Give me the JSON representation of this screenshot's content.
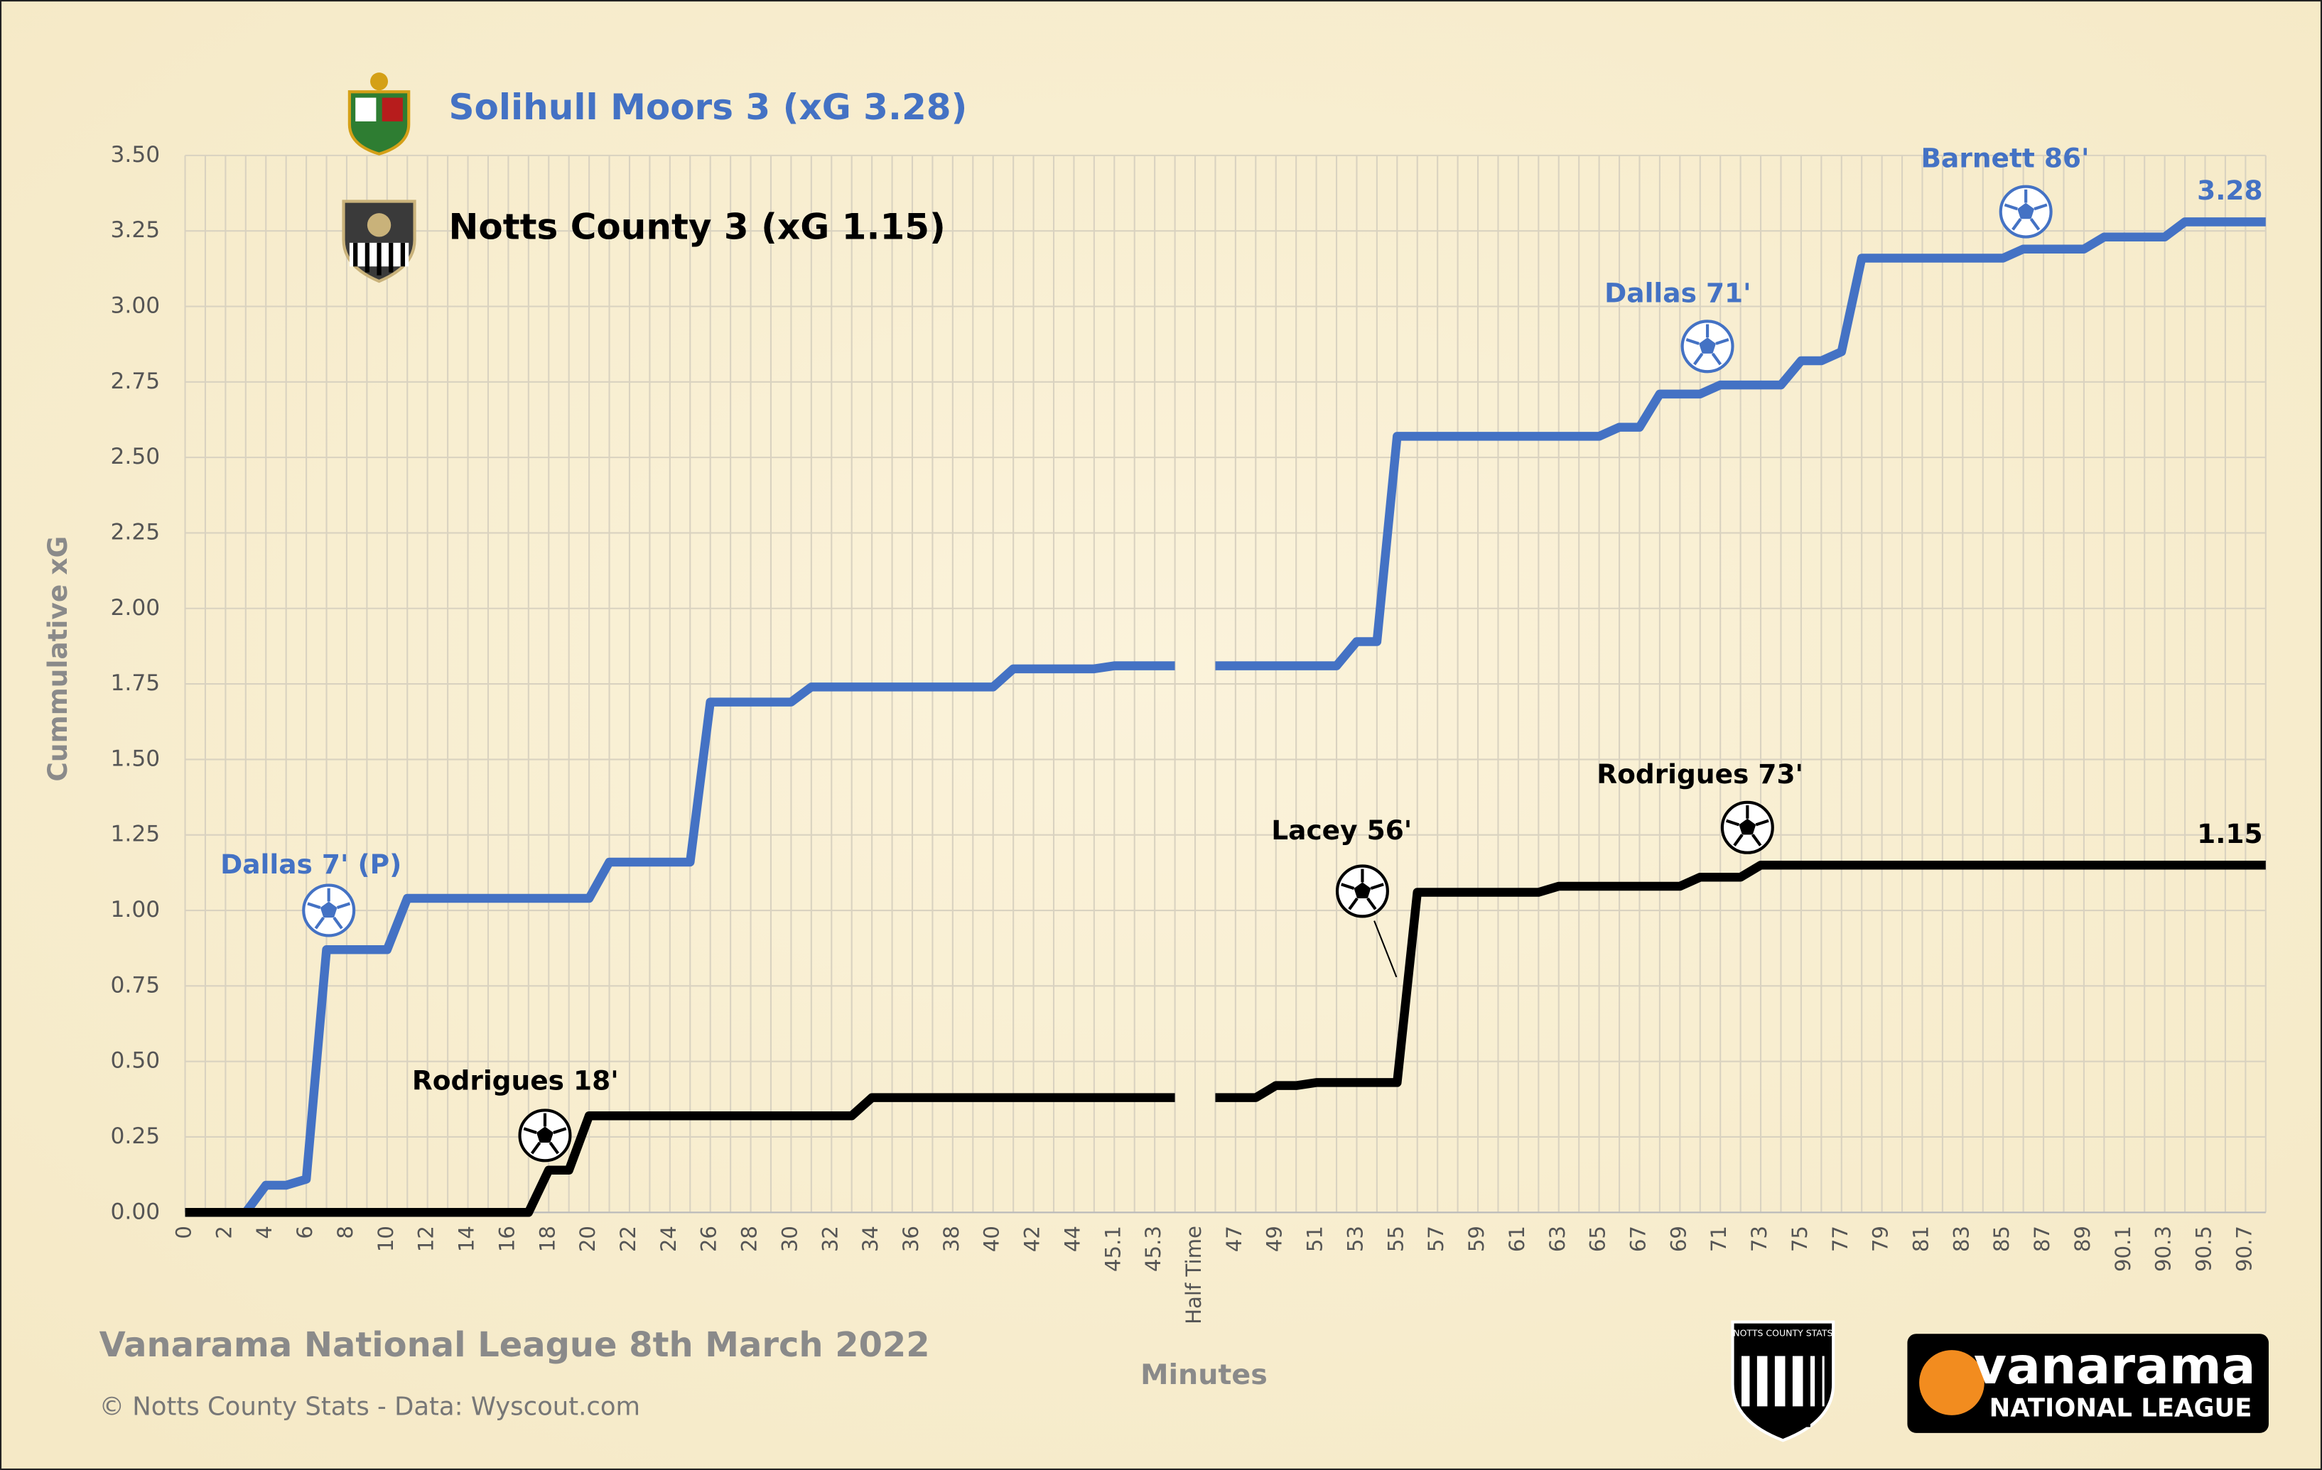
{
  "chart_data": {
    "type": "line",
    "subtitle": "Vanarama National League 8th March 2022",
    "source": "© Notts County Stats - Data: Wyscout.com",
    "x_label": "Minutes",
    "y_label": "Cummulative  xG",
    "categories": [
      "0",
      null,
      "2",
      null,
      "4",
      null,
      "6",
      null,
      "8",
      null,
      "10",
      null,
      "12",
      null,
      "14",
      null,
      "16",
      null,
      "18",
      null,
      "20",
      null,
      "22",
      null,
      "24",
      null,
      "26",
      null,
      "28",
      null,
      "30",
      null,
      "32",
      null,
      "34",
      null,
      "36",
      null,
      "38",
      null,
      "40",
      null,
      "42",
      null,
      "44",
      null,
      "45.1",
      null,
      "45.3",
      null,
      "Half Time",
      null,
      "47",
      null,
      "49",
      null,
      "51",
      null,
      "53",
      null,
      "55",
      null,
      "57",
      null,
      "59",
      null,
      "61",
      null,
      "63",
      null,
      "65",
      null,
      "67",
      null,
      "69",
      null,
      "71",
      null,
      "73",
      null,
      "75",
      null,
      "77",
      null,
      "79",
      null,
      "81",
      null,
      "83",
      null,
      "85",
      null,
      "87",
      null,
      "89",
      null,
      "90.1",
      null,
      "90.3",
      null,
      "90.5",
      null,
      "90.7",
      null
    ],
    "series": [
      {
        "name": "Solihull Moors 3 (xG 3.28)",
        "color": "#4472c4",
        "values": [
          0,
          0,
          0,
          0,
          0.09,
          0.09,
          0.11,
          0.87,
          0.87,
          0.87,
          0.87,
          1.04,
          1.04,
          1.04,
          1.04,
          1.04,
          1.04,
          1.04,
          1.04,
          1.04,
          1.04,
          1.16,
          1.16,
          1.16,
          1.16,
          1.16,
          1.69,
          1.69,
          1.69,
          1.69,
          1.69,
          1.74,
          1.74,
          1.74,
          1.74,
          1.74,
          1.74,
          1.74,
          1.74,
          1.74,
          1.74,
          1.8,
          1.8,
          1.8,
          1.8,
          1.8,
          1.81,
          1.81,
          1.81,
          1.81,
          null,
          1.81,
          1.81,
          1.81,
          1.81,
          1.81,
          1.81,
          1.81,
          1.89,
          1.89,
          2.57,
          2.57,
          2.57,
          2.57,
          2.57,
          2.57,
          2.57,
          2.57,
          2.57,
          2.57,
          2.57,
          2.6,
          2.6,
          2.71,
          2.71,
          2.71,
          2.74,
          2.74,
          2.74,
          2.74,
          2.82,
          2.82,
          2.85,
          3.16,
          3.16,
          3.16,
          3.16,
          3.16,
          3.16,
          3.16,
          3.16,
          3.19,
          3.19,
          3.19,
          3.19,
          3.23,
          3.23,
          3.23,
          3.23,
          3.28,
          3.28,
          3.28,
          3.28,
          3.28
        ]
      },
      {
        "name": "Notts County 3 (xG 1.15)",
        "color": "#000000",
        "values": [
          0,
          0,
          0,
          0,
          0,
          0,
          0,
          0,
          0,
          0,
          0,
          0,
          0,
          0,
          0,
          0,
          0,
          0,
          0.14,
          0.14,
          0.32,
          0.32,
          0.32,
          0.32,
          0.32,
          0.32,
          0.32,
          0.32,
          0.32,
          0.32,
          0.32,
          0.32,
          0.32,
          0.32,
          0.38,
          0.38,
          0.38,
          0.38,
          0.38,
          0.38,
          0.38,
          0.38,
          0.38,
          0.38,
          0.38,
          0.38,
          0.38,
          0.38,
          0.38,
          0.38,
          null,
          0.38,
          0.38,
          0.38,
          0.42,
          0.42,
          0.43,
          0.43,
          0.43,
          0.43,
          0.43,
          1.06,
          1.06,
          1.06,
          1.06,
          1.06,
          1.06,
          1.06,
          1.08,
          1.08,
          1.08,
          1.08,
          1.08,
          1.08,
          1.08,
          1.11,
          1.11,
          1.11,
          1.15,
          1.15,
          1.15,
          1.15,
          1.15,
          1.15,
          1.15,
          1.15,
          1.15,
          1.15,
          1.15,
          1.15,
          1.15,
          1.15,
          1.15,
          1.15,
          1.15,
          1.15,
          1.15,
          1.15,
          1.15,
          1.15,
          1.15,
          1.15,
          1.15,
          1.15
        ]
      }
    ],
    "annotations": [
      {
        "text": "Dallas 7' (P)",
        "series": 0
      },
      {
        "text": "Rodrigues 18'",
        "series": 1
      },
      {
        "text": "Lacey 56'",
        "series": 1
      },
      {
        "text": "Rodrigues 73'",
        "series": 1
      },
      {
        "text": "Dallas 71'",
        "series": 0
      },
      {
        "text": "Barnett 86'",
        "series": 0
      }
    ],
    "logos": {
      "notts_stats": "NOTTS COUNTY STATS",
      "league_brand": "vanarama",
      "league_name": "NATIONAL LEAGUE"
    },
    "ylim": [
      0,
      3.5
    ],
    "yticks": [
      {
        "value": 0,
        "label": "0.00"
      },
      0.25,
      {
        "value": 0.5,
        "label": "0.50"
      },
      0.75,
      {
        "value": 1,
        "label": "1.00"
      },
      1.25,
      {
        "value": 1.5,
        "label": "1.50"
      },
      1.75,
      {
        "value": 2,
        "label": "2.00"
      },
      2.25,
      {
        "value": 2.5,
        "label": "2.50"
      },
      2.75,
      {
        "value": 3,
        "label": "3.00"
      },
      3.25,
      {
        "value": 3.5,
        "label": "3.50"
      }
    ],
    "grid": true
  }
}
